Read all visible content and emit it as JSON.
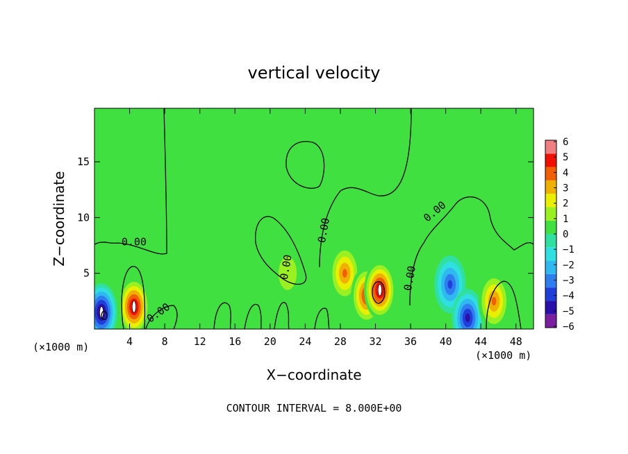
{
  "chart_data": {
    "type": "heatmap",
    "title": "vertical velocity",
    "xlabel": "X−coordinate",
    "ylabel": "Z−coordinate",
    "x_unit_left": "(×1000 m)",
    "x_unit_right": "(×1000 m)",
    "footer": "CONTOUR INTERVAL = 8.000E+00",
    "xlim": [
      0,
      50
    ],
    "ylim": [
      0,
      19.8
    ],
    "x_ticks": [
      4,
      8,
      12,
      16,
      20,
      24,
      28,
      32,
      36,
      40,
      44,
      48
    ],
    "y_ticks": [
      5,
      10,
      15
    ],
    "contour_label": "0.00",
    "colorbar": {
      "range": [
        -6,
        6
      ],
      "ticks": [
        "6",
        "5",
        "4",
        "3",
        "2",
        "1",
        "0",
        "−1",
        "−2",
        "−3",
        "−4",
        "−5",
        "−6"
      ],
      "colors": [
        "#7a1fa0",
        "#2a10a8",
        "#1f3fd8",
        "#2f7ef0",
        "#30b8f0",
        "#30e0e0",
        "#30e0a0",
        "#40e040",
        "#9af020",
        "#e8f000",
        "#f0b000",
        "#f06000",
        "#f01000",
        "#f08080"
      ]
    },
    "features": [
      {
        "x": 0.8,
        "z": 1.5,
        "w": -6
      },
      {
        "x": 4.5,
        "z": 2.0,
        "w": 6
      },
      {
        "x": 22.0,
        "z": 5.0,
        "w": 1.5
      },
      {
        "x": 28.5,
        "z": 5.0,
        "w": 3.5
      },
      {
        "x": 31.0,
        "z": 3.0,
        "w": 4.5
      },
      {
        "x": 32.5,
        "z": 3.5,
        "w": 6
      },
      {
        "x": 40.5,
        "z": 4.0,
        "w": -3.5
      },
      {
        "x": 42.5,
        "z": 1.0,
        "w": -4.5
      },
      {
        "x": 45.5,
        "z": 2.5,
        "w": 4
      },
      {
        "x": 25.0,
        "z": 14.5,
        "w": 0.8
      }
    ]
  }
}
